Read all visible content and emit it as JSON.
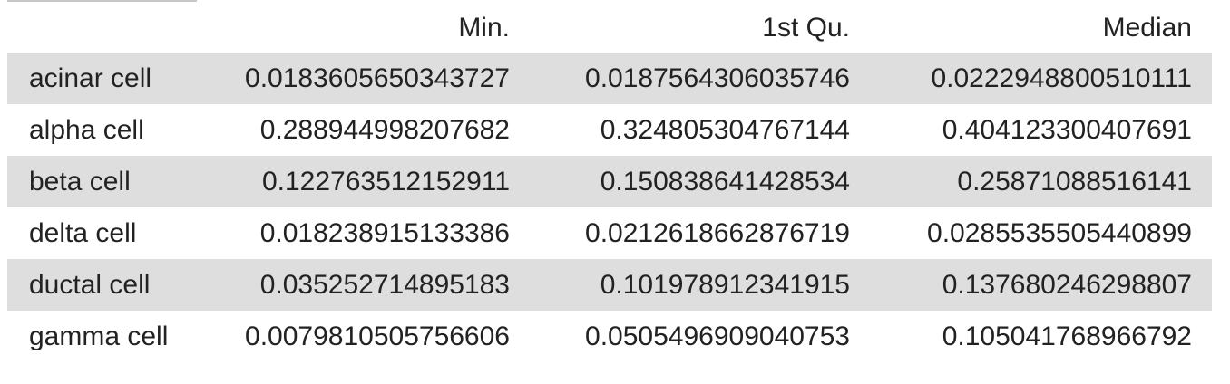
{
  "table": {
    "columns": [
      "",
      "Min.",
      "1st Qu.",
      "Median"
    ],
    "rows": [
      {
        "label": "acinar cell",
        "values": [
          "0.0183605650343727",
          "0.0187564306035746",
          "0.0222948800510111"
        ]
      },
      {
        "label": "alpha cell",
        "values": [
          "0.288944998207682",
          "0.324805304767144",
          "0.404123300407691"
        ]
      },
      {
        "label": "beta cell",
        "values": [
          "0.122763512152911",
          "0.150838641428534",
          "0.25871088516141"
        ]
      },
      {
        "label": "delta cell",
        "values": [
          "0.018238915133386",
          "0.0212618662876719",
          "0.0285535505440899"
        ]
      },
      {
        "label": "ductal cell",
        "values": [
          "0.035252714895183",
          "0.101978912341915",
          "0.137680246298807"
        ]
      },
      {
        "label": "gamma cell",
        "values": [
          "0.0079810505756606",
          "0.0505496909040753",
          "0.105041768966792"
        ]
      }
    ]
  },
  "colors": {
    "stripe": "#dedede",
    "text": "#222222",
    "rule": "#c8c8c8"
  }
}
